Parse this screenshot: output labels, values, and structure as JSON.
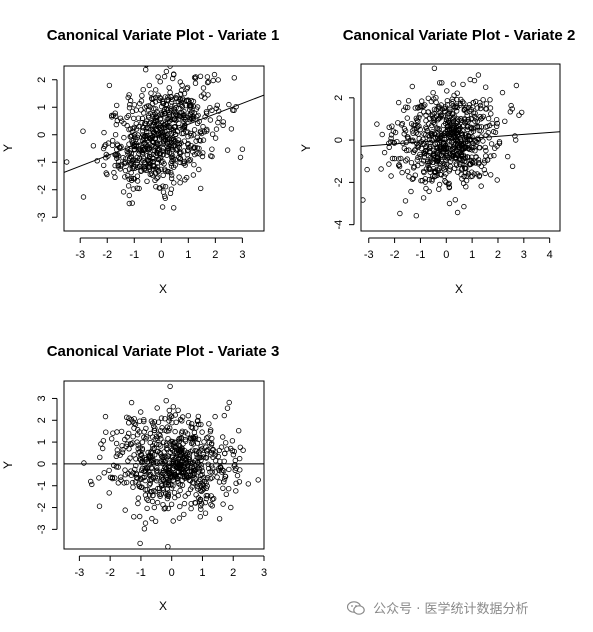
{
  "watermark": {
    "text": "公众号 · 医学统计数据分析",
    "icon": "wechat-icon",
    "color": "#8a8a8a"
  },
  "chart_data": [
    {
      "type": "scatter",
      "title": "Canonical Variate Plot - Variate 1",
      "xlabel": "X",
      "ylabel": "Y",
      "xlim": [
        -3.6,
        3.8
      ],
      "ylim": [
        -3.5,
        2.5
      ],
      "xticks": [
        -3,
        -2,
        -1,
        0,
        1,
        2,
        3
      ],
      "yticks": [
        -3,
        -2,
        -1,
        0,
        1,
        2
      ],
      "n_points": 700,
      "correlation": 0.38,
      "x_spread": 1.0,
      "y_spread": 1.0,
      "fit_line": {
        "slope": 0.38,
        "intercept": 0.0
      },
      "marker": "open-circle",
      "grid": false
    },
    {
      "type": "scatter",
      "title": "Canonical Variate Plot - Variate 2",
      "xlabel": "X",
      "ylabel": "Y",
      "xlim": [
        -3.3,
        4.4
      ],
      "ylim": [
        -4.3,
        3.6
      ],
      "xticks": [
        -3,
        -2,
        -1,
        0,
        1,
        2,
        3,
        4
      ],
      "yticks": [
        -4,
        -2,
        0,
        2
      ],
      "n_points": 700,
      "correlation": 0.09,
      "x_spread": 1.0,
      "y_spread": 1.1,
      "fit_line": {
        "slope": 0.09,
        "intercept": 0.0
      },
      "marker": "open-circle",
      "grid": false
    },
    {
      "type": "scatter",
      "title": "Canonical Variate Plot - Variate 3",
      "xlabel": "X",
      "ylabel": "Y",
      "xlim": [
        -3.5,
        3.0
      ],
      "ylim": [
        -3.9,
        3.8
      ],
      "xticks": [
        -3,
        -2,
        -1,
        0,
        1,
        2,
        3
      ],
      "yticks": [
        -3,
        -2,
        -1,
        0,
        1,
        2,
        3
      ],
      "n_points": 700,
      "correlation": 0.0,
      "x_spread": 1.0,
      "y_spread": 1.1,
      "fit_line": {
        "slope": 0.0,
        "intercept": 0.0
      },
      "marker": "open-circle",
      "grid": false
    }
  ]
}
